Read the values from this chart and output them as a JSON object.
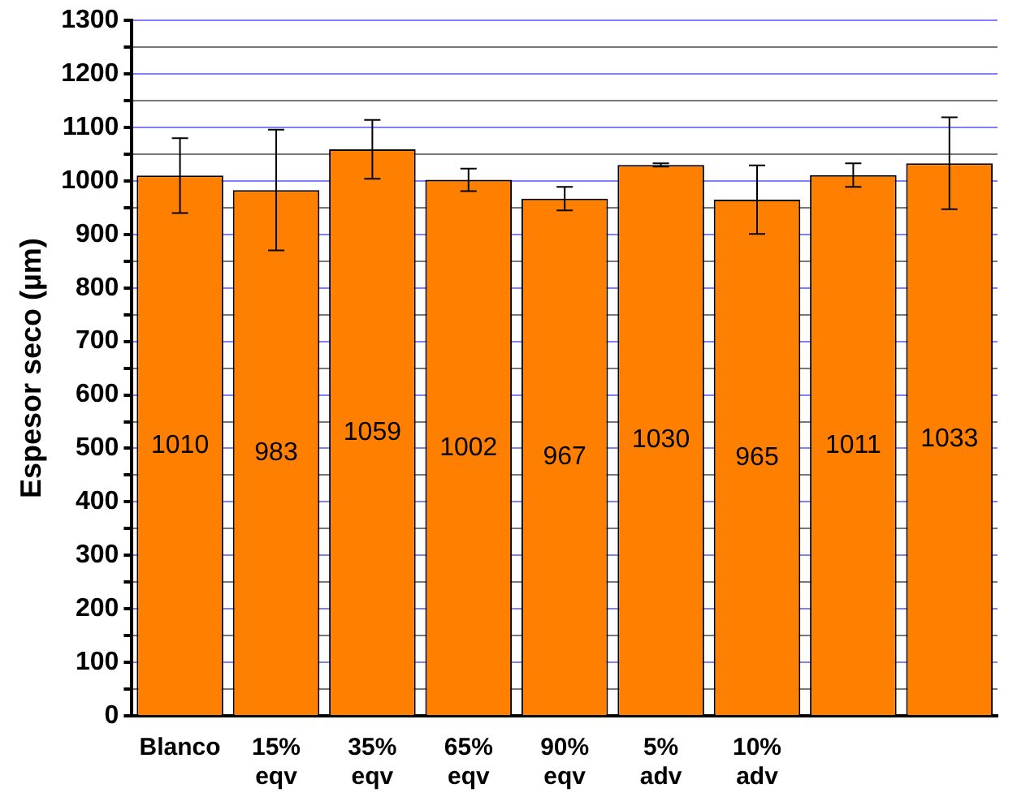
{
  "chart_data": {
    "type": "bar",
    "ylabel": "Espesor seco (µm)",
    "categories": [
      "Blanco",
      "15% eqv",
      "35% eqv",
      "65% eqv",
      "90% eqv",
      "5% adv",
      "10% adv",
      null,
      null
    ],
    "values": [
      1010,
      983,
      1059,
      1002,
      967,
      1030,
      965,
      1011,
      1033
    ],
    "errors": [
      70,
      113,
      55,
      21,
      22,
      3,
      64,
      22,
      86
    ],
    "color": "#ff8000",
    "data_labels": true,
    "grid": true,
    "ylim": [
      0,
      1300
    ],
    "yticks": [
      0,
      {
        "value": 50,
        "label": null
      },
      100,
      {
        "value": 150,
        "label": null
      },
      200,
      {
        "value": 250,
        "label": null
      },
      300,
      {
        "value": 350,
        "label": null
      },
      400,
      {
        "value": 450,
        "label": null
      },
      500,
      {
        "value": 550,
        "label": null
      },
      600,
      {
        "value": 650,
        "label": null
      },
      700,
      {
        "value": 750,
        "label": null
      },
      800,
      {
        "value": 850,
        "label": null
      },
      900,
      {
        "value": 950,
        "label": null
      },
      1000,
      {
        "value": 1050,
        "label": null
      },
      1100,
      {
        "value": 1150,
        "label": null
      },
      1200,
      {
        "value": 1250,
        "label": null
      },
      1300
    ]
  }
}
